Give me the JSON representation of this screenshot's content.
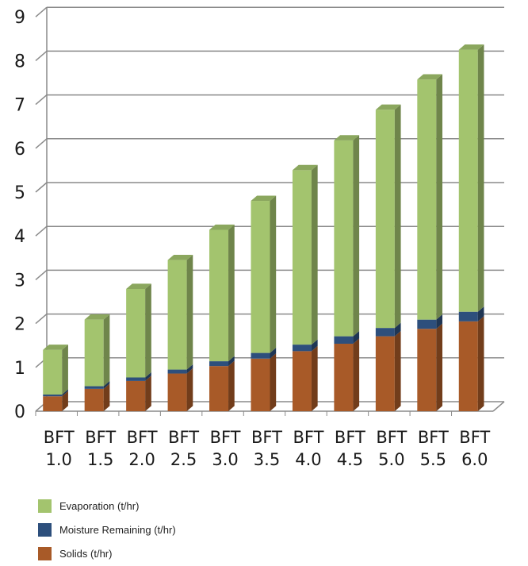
{
  "chart_data": {
    "type": "bar",
    "stacked": true,
    "three_d": true,
    "categories": [
      "BFT 1.0",
      "BFT 1.5",
      "BFT 2.0",
      "BFT 2.5",
      "BFT 3.0",
      "BFT 3.5",
      "BFT 4.0",
      "BFT 4.5",
      "BFT 5.0",
      "BFT 5.5",
      "BFT 6.0"
    ],
    "category_lines": [
      [
        "BFT",
        "1.0"
      ],
      [
        "BFT",
        "1.5"
      ],
      [
        "BFT",
        "2.0"
      ],
      [
        "BFT",
        "2.5"
      ],
      [
        "BFT",
        "3.0"
      ],
      [
        "BFT",
        "3.5"
      ],
      [
        "BFT",
        "4.0"
      ],
      [
        "BFT",
        "4.5"
      ],
      [
        "BFT",
        "5.0"
      ],
      [
        "BFT",
        "5.5"
      ],
      [
        "BFT",
        "6.0"
      ]
    ],
    "series": [
      {
        "name": "Solids (t/hr)",
        "color": "#a85a28",
        "values": [
          0.34,
          0.51,
          0.69,
          0.86,
          1.03,
          1.2,
          1.37,
          1.54,
          1.71,
          1.88,
          2.05
        ]
      },
      {
        "name": "Moisture Remaining (t/hr)",
        "color": "#2d4f7c",
        "values": [
          0.04,
          0.06,
          0.08,
          0.09,
          0.11,
          0.13,
          0.15,
          0.17,
          0.19,
          0.21,
          0.22
        ]
      },
      {
        "name": "Evaporation (t/hr)",
        "color": "#a3c46e",
        "values": [
          1.02,
          1.52,
          2.02,
          2.5,
          3.0,
          3.47,
          3.98,
          4.47,
          4.98,
          5.48,
          5.98
        ]
      }
    ],
    "legend_order": [
      "Evaporation (t/hr)",
      "Moisture Remaining (t/hr)",
      "Solids (t/hr)"
    ],
    "yticks": [
      "0",
      "1",
      "2",
      "3",
      "4",
      "5",
      "6",
      "7",
      "8",
      "9"
    ],
    "ylim": [
      0,
      9
    ],
    "grid": true,
    "legend_position": "bottom-left",
    "title": "",
    "xlabel": "",
    "ylabel": ""
  }
}
